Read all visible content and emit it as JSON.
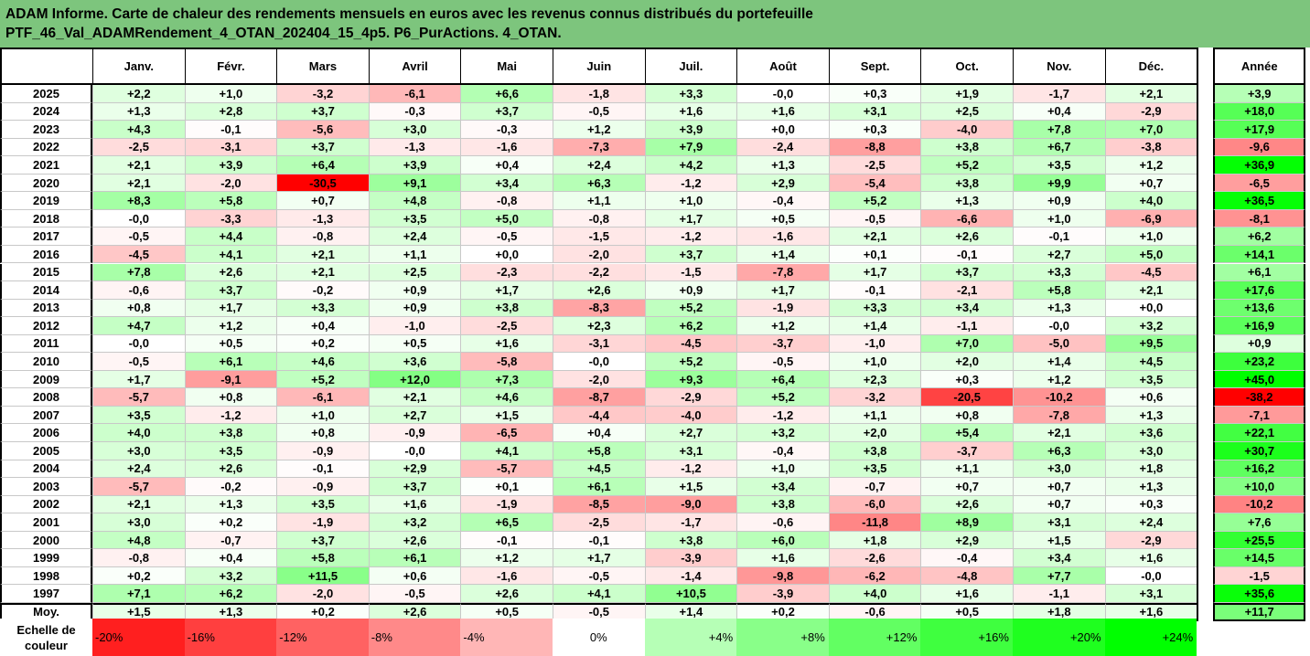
{
  "title": {
    "line1": "ADAM Informe. Carte de chaleur des rendements mensuels en euros avec les revenus connus distribués du portefeuille",
    "line2": "PTF_46_Val_ADAMRendement_4_OTAN_202404_15_4p5. P6_PurActions. 4_OTAN."
  },
  "chart_data": {
    "type": "heatmap",
    "columns": [
      "Janv.",
      "Févr.",
      "Mars",
      "Avril",
      "Mai",
      "Juin",
      "Juil.",
      "Août",
      "Sept.",
      "Oct.",
      "Nov.",
      "Déc."
    ],
    "year_column": "Année",
    "rows": [
      {
        "year": "2025",
        "values": [
          "+2,2",
          "+1,0",
          "-3,2",
          "-6,1",
          "+6,6",
          "-1,8",
          "+3,3",
          "-0,0",
          "+0,3",
          "+1,9",
          "-1,7",
          "+2,1"
        ],
        "annual": "+3,9"
      },
      {
        "year": "2024",
        "values": [
          "+1,3",
          "+2,8",
          "+3,7",
          "-0,3",
          "+3,7",
          "-0,5",
          "+1,6",
          "+1,6",
          "+3,1",
          "+2,5",
          "+0,4",
          "-2,9"
        ],
        "annual": "+18,0"
      },
      {
        "year": "2023",
        "values": [
          "+4,3",
          "-0,1",
          "-5,6",
          "+3,0",
          "-0,3",
          "+1,2",
          "+3,9",
          "+0,0",
          "+0,3",
          "-4,0",
          "+7,8",
          "+7,0"
        ],
        "annual": "+17,9"
      },
      {
        "year": "2022",
        "values": [
          "-2,5",
          "-3,1",
          "+3,7",
          "-1,3",
          "-1,6",
          "-7,3",
          "+7,9",
          "-2,4",
          "-8,8",
          "+3,8",
          "+6,7",
          "-3,8"
        ],
        "annual": "-9,6"
      },
      {
        "year": "2021",
        "values": [
          "+2,1",
          "+3,9",
          "+6,4",
          "+3,9",
          "+0,4",
          "+2,4",
          "+4,2",
          "+1,3",
          "-2,5",
          "+5,2",
          "+3,5",
          "+1,2"
        ],
        "annual": "+36,9"
      },
      {
        "year": "2020",
        "values": [
          "+2,1",
          "-2,0",
          "-30,5",
          "+9,1",
          "+3,4",
          "+6,3",
          "-1,2",
          "+2,9",
          "-5,4",
          "+3,8",
          "+9,9",
          "+0,7"
        ],
        "annual": "-6,5"
      },
      {
        "year": "2019",
        "values": [
          "+8,3",
          "+5,8",
          "+0,7",
          "+4,8",
          "-0,8",
          "+1,1",
          "+1,0",
          "-0,4",
          "+5,2",
          "+1,3",
          "+0,9",
          "+4,0"
        ],
        "annual": "+36,5"
      },
      {
        "year": "2018",
        "values": [
          "-0,0",
          "-3,3",
          "-1,3",
          "+3,5",
          "+5,0",
          "-0,8",
          "+1,7",
          "+0,5",
          "-0,5",
          "-6,6",
          "+1,0",
          "-6,9"
        ],
        "annual": "-8,1"
      },
      {
        "year": "2017",
        "values": [
          "-0,5",
          "+4,4",
          "-0,8",
          "+2,4",
          "-0,5",
          "-1,5",
          "-1,2",
          "-1,6",
          "+2,1",
          "+2,6",
          "-0,1",
          "+1,0"
        ],
        "annual": "+6,2"
      },
      {
        "year": "2016",
        "values": [
          "-4,5",
          "+4,1",
          "+2,1",
          "+1,1",
          "+0,0",
          "-2,0",
          "+3,7",
          "+1,4",
          "+0,1",
          "-0,1",
          "+2,7",
          "+5,0"
        ],
        "annual": "+14,1"
      },
      {
        "year": "2015",
        "values": [
          "+7,8",
          "+2,6",
          "+2,1",
          "+2,5",
          "-2,3",
          "-2,2",
          "-1,5",
          "-7,8",
          "+1,7",
          "+3,7",
          "+3,3",
          "-4,5"
        ],
        "annual": "+6,1"
      },
      {
        "year": "2014",
        "values": [
          "-0,6",
          "+3,7",
          "-0,2",
          "+0,9",
          "+1,7",
          "+2,6",
          "+0,9",
          "+1,7",
          "-0,1",
          "-2,1",
          "+5,8",
          "+2,1"
        ],
        "annual": "+17,6"
      },
      {
        "year": "2013",
        "values": [
          "+0,8",
          "+1,7",
          "+3,3",
          "+0,9",
          "+3,8",
          "-8,3",
          "+5,2",
          "-1,9",
          "+3,3",
          "+3,4",
          "+1,3",
          "+0,0"
        ],
        "annual": "+13,6"
      },
      {
        "year": "2012",
        "values": [
          "+4,7",
          "+1,2",
          "+0,4",
          "-1,0",
          "-2,5",
          "+2,3",
          "+6,2",
          "+1,2",
          "+1,4",
          "-1,1",
          "-0,0",
          "+3,2"
        ],
        "annual": "+16,9"
      },
      {
        "year": "2011",
        "values": [
          "-0,0",
          "+0,5",
          "+0,2",
          "+0,5",
          "+1,6",
          "-3,1",
          "-4,5",
          "-3,7",
          "-1,0",
          "+7,0",
          "-5,0",
          "+9,5"
        ],
        "annual": "+0,9"
      },
      {
        "year": "2010",
        "values": [
          "-0,5",
          "+6,1",
          "+4,6",
          "+3,6",
          "-5,8",
          "-0,0",
          "+5,2",
          "-0,5",
          "+1,0",
          "+2,0",
          "+1,4",
          "+4,5"
        ],
        "annual": "+23,2"
      },
      {
        "year": "2009",
        "values": [
          "+1,7",
          "-9,1",
          "+5,2",
          "+12,0",
          "+7,3",
          "-2,0",
          "+9,3",
          "+6,4",
          "+2,3",
          "+0,3",
          "+1,2",
          "+3,5"
        ],
        "annual": "+45,0"
      },
      {
        "year": "2008",
        "values": [
          "-5,7",
          "+0,8",
          "-6,1",
          "+2,1",
          "+4,6",
          "-8,7",
          "-2,9",
          "+5,2",
          "-3,2",
          "-20,5",
          "-10,2",
          "+0,6"
        ],
        "annual": "-38,2"
      },
      {
        "year": "2007",
        "values": [
          "+3,5",
          "-1,2",
          "+1,0",
          "+2,7",
          "+1,5",
          "-4,4",
          "-4,0",
          "-1,2",
          "+1,1",
          "+0,8",
          "-7,8",
          "+1,3"
        ],
        "annual": "-7,1"
      },
      {
        "year": "2006",
        "values": [
          "+4,0",
          "+3,8",
          "+0,8",
          "-0,9",
          "-6,5",
          "+0,4",
          "+2,7",
          "+3,2",
          "+2,0",
          "+5,4",
          "+2,1",
          "+3,6"
        ],
        "annual": "+22,1"
      },
      {
        "year": "2005",
        "values": [
          "+3,0",
          "+3,5",
          "-0,9",
          "-0,0",
          "+4,1",
          "+5,8",
          "+3,1",
          "-0,4",
          "+3,8",
          "-3,7",
          "+6,3",
          "+3,0"
        ],
        "annual": "+30,7"
      },
      {
        "year": "2004",
        "values": [
          "+2,4",
          "+2,6",
          "-0,1",
          "+2,9",
          "-5,7",
          "+4,5",
          "-1,2",
          "+1,0",
          "+3,5",
          "+1,1",
          "+3,0",
          "+1,8"
        ],
        "annual": "+16,2"
      },
      {
        "year": "2003",
        "values": [
          "-5,7",
          "-0,2",
          "-0,9",
          "+3,7",
          "+0,1",
          "+6,1",
          "+1,5",
          "+3,4",
          "-0,7",
          "+0,7",
          "+0,7",
          "+1,3"
        ],
        "annual": "+10,0"
      },
      {
        "year": "2002",
        "values": [
          "+2,1",
          "+1,3",
          "+3,5",
          "+1,6",
          "-1,9",
          "-8,5",
          "-9,0",
          "+3,8",
          "-6,0",
          "+2,6",
          "+0,7",
          "+0,3"
        ],
        "annual": "-10,2"
      },
      {
        "year": "2001",
        "values": [
          "+3,0",
          "+0,2",
          "-1,9",
          "+3,2",
          "+6,5",
          "-2,5",
          "-1,7",
          "-0,6",
          "-11,8",
          "+8,9",
          "+3,1",
          "+2,4"
        ],
        "annual": "+7,6"
      },
      {
        "year": "2000",
        "values": [
          "+4,8",
          "-0,7",
          "+3,7",
          "+2,6",
          "-0,1",
          "-0,1",
          "+3,8",
          "+6,0",
          "+1,8",
          "+2,9",
          "+1,5",
          "-2,9"
        ],
        "annual": "+25,5"
      },
      {
        "year": "1999",
        "values": [
          "-0,8",
          "+0,4",
          "+5,8",
          "+6,1",
          "+1,2",
          "+1,7",
          "-3,9",
          "+1,6",
          "-2,6",
          "-0,4",
          "+3,4",
          "+1,6"
        ],
        "annual": "+14,5"
      },
      {
        "year": "1998",
        "values": [
          "+0,2",
          "+3,2",
          "+11,5",
          "+0,6",
          "-1,6",
          "-0,5",
          "-1,4",
          "-9,8",
          "-6,2",
          "-4,8",
          "+7,7",
          "-0,0"
        ],
        "annual": "-1,5"
      },
      {
        "year": "1997",
        "values": [
          "+7,1",
          "+6,2",
          "-2,0",
          "-0,5",
          "+2,6",
          "+4,1",
          "+10,5",
          "-3,9",
          "+4,0",
          "+1,6",
          "-1,1",
          "+3,1"
        ],
        "annual": "+35,6"
      }
    ],
    "average_row": {
      "label": "Moy.",
      "values": [
        "+1,5",
        "+1,3",
        "+0,2",
        "+2,6",
        "+0,5",
        "-0,5",
        "+1,4",
        "+0,2",
        "-0,6",
        "+0,5",
        "+1,8",
        "+1,6"
      ],
      "annual": "+11,7"
    },
    "scale": {
      "label_line1": "Echelle de",
      "label_line2": "couleur",
      "stops": [
        "-20%",
        "-16%",
        "-12%",
        "-8%",
        "-4%",
        "0%",
        "+4%",
        "+8%",
        "+12%",
        "+16%",
        "+20%",
        "+24%"
      ],
      "stop_values": [
        -20,
        -16,
        -12,
        -8,
        -4,
        0,
        4,
        8,
        12,
        16,
        20,
        24
      ]
    },
    "colors": {
      "negative": "#ff0000",
      "positive": "#00ff00",
      "neutral": "#ffffff",
      "title_bg": "#7dc57d"
    }
  }
}
